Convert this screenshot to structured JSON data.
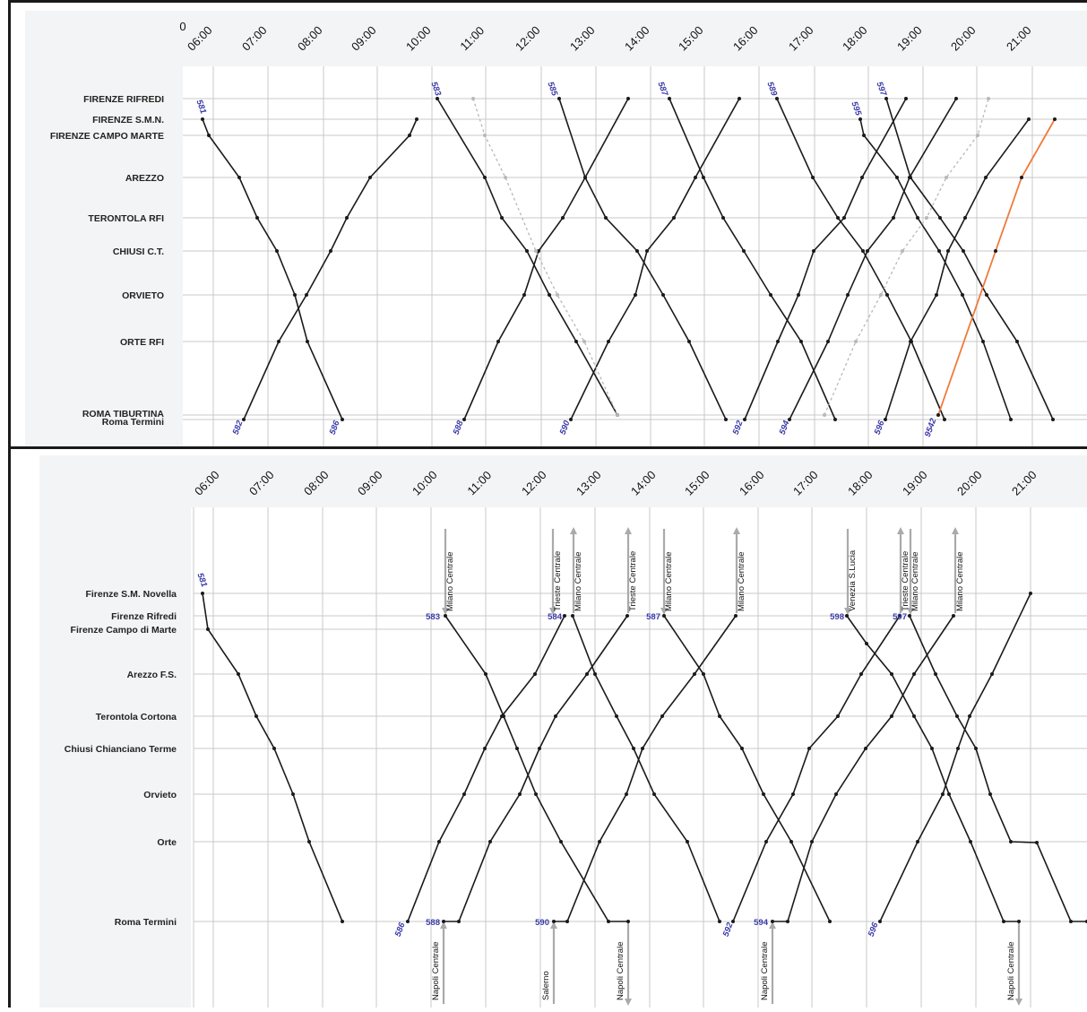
{
  "top": {
    "partial_left_tick": "0",
    "hours": [
      "06:00",
      "07:00",
      "08:00",
      "09:00",
      "10:00",
      "11:00",
      "12:00",
      "13:00",
      "14:00",
      "15:00",
      "16:00",
      "17:00",
      "18:00",
      "19:00",
      "20:00",
      "21:00"
    ],
    "stations": [
      "FIRENZE RIFREDI",
      "FIRENZE S.M.N.",
      "FIRENZE CAMPO MARTE",
      "AREZZO",
      "TERONTOLA RFI",
      "CHIUSI C.T.",
      "ORVIETO",
      "ORTE RFI",
      "ROMA TIBURTINA",
      "Roma Termini"
    ],
    "train_numbers": [
      "581",
      "582",
      "583",
      "585",
      "586",
      "587",
      "588",
      "589",
      "590",
      "592",
      "594",
      "595",
      "596",
      "597",
      "9542"
    ]
  },
  "bottom": {
    "hours": [
      "06:00",
      "07:00",
      "08:00",
      "09:00",
      "10:00",
      "11:00",
      "12:00",
      "13:00",
      "14:00",
      "15:00",
      "16:00",
      "17:00",
      "18:00",
      "19:00",
      "20:00",
      "21:00"
    ],
    "stations": [
      "Firenze S.M. Novella",
      "Firenze Rifredi",
      "Firenze Campo di Marte",
      "Arezzo F.S.",
      "Terontola Cortona",
      "Chiusi Chianciano Terme",
      "Orvieto",
      "Orte",
      "Roma Termini"
    ],
    "train_numbers": [
      "581",
      "583",
      "584",
      "587",
      "598",
      "597",
      "586",
      "588",
      "590",
      "592",
      "594",
      "596"
    ],
    "destinations_north": [
      "Milano Centrale",
      "Trieste Centrale",
      "Milano Centrale",
      "Trieste Centrale",
      "Milano Centrale",
      "Milano Centrale",
      "Venezia S.Lucia",
      "Trieste Centrale",
      "Milano Centrale",
      "Milano Centrale"
    ],
    "destinations_south": [
      "Napoli Centrale",
      "Salerno",
      "Napoli Centrale",
      "Napoli Centrale",
      "Napoli Centrale"
    ]
  },
  "colors": {
    "line": "#1a1a1a",
    "highlight": "#f07a3a",
    "ghost": "#b8b8b8",
    "grid": "#c8c8c8",
    "label_bg": "#f3f4f5",
    "train_number": "#3a3aa8"
  }
}
